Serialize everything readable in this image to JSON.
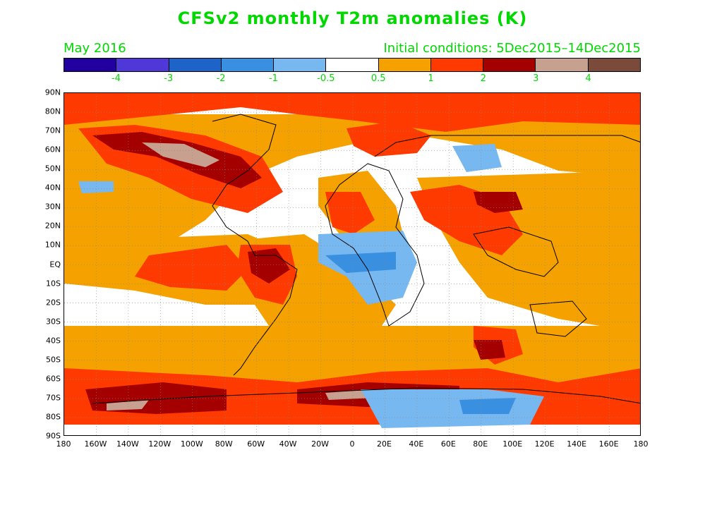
{
  "title": "CFSv2 monthly T2m anomalies (K)",
  "forecast_month": "May 2016",
  "initial_conditions": "Initial conditions: 5Dec2015–14Dec2015",
  "colors": {
    "text": "#00d800",
    "warm_05_1": "#f5a200",
    "warm_1_2": "#ff3a00",
    "warm_2_3": "#a50000",
    "warm_3_4": "#c8a090",
    "cold_05_1": "#78b8f0",
    "cold_1_2": "#3a90e0"
  },
  "colorbar": {
    "colors": [
      "#2200a0",
      "#5038d8",
      "#1e64c8",
      "#3a90e0",
      "#78b8f0",
      "#ffffff",
      "#f5a200",
      "#ff3a00",
      "#a50000",
      "#c8a090",
      "#7a4a3a"
    ],
    "labels": [
      "-4",
      "-3",
      "-2",
      "-1",
      "-0.5",
      "0.5",
      "1",
      "2",
      "3",
      "4"
    ]
  },
  "axes": {
    "lat_labels": [
      "90N",
      "80N",
      "70N",
      "60N",
      "50N",
      "40N",
      "30N",
      "20N",
      "10N",
      "EQ",
      "10S",
      "20S",
      "30S",
      "40S",
      "50S",
      "60S",
      "70S",
      "80S",
      "90S"
    ],
    "lon_labels": [
      "180",
      "160W",
      "140W",
      "120W",
      "100W",
      "80W",
      "60W",
      "40W",
      "20W",
      "0",
      "20E",
      "40E",
      "60E",
      "80E",
      "100E",
      "120E",
      "140E",
      "160E",
      "180"
    ]
  }
}
